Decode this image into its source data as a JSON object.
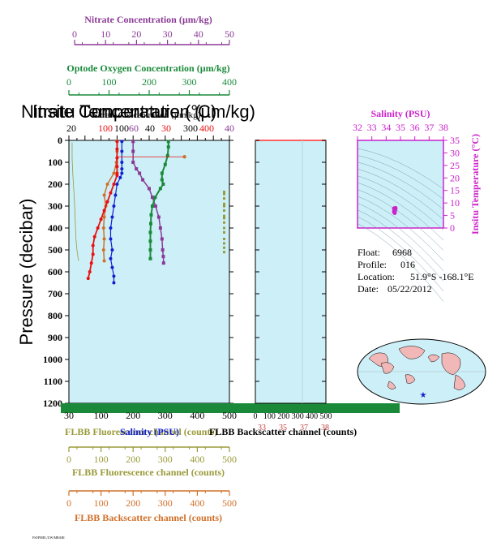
{
  "colors": {
    "nitrate": "#8b3a96",
    "oxygen": "#1a8a3a",
    "temperature": "#e81010",
    "salinity_profile": "#1020d0",
    "fluorescence": "#9a9a3a",
    "backscatter": "#d0702a",
    "insitu": "#cc22cc",
    "panel_bg": "#cdeff8"
  },
  "top_axes": [
    {
      "id": "nitrate",
      "label": "Nitrate Concentration (µm/kg)",
      "ticks": [
        "0",
        "10",
        "20",
        "30",
        "40",
        "50"
      ],
      "color": "#8b3a96"
    },
    {
      "id": "oxygen",
      "label": "Optode Oxygen Concentration (µm/kg)",
      "ticks": [
        "0",
        "100",
        "200",
        "300",
        "400"
      ],
      "color": "#1a8a3a"
    }
  ],
  "bottom_axes": [
    {
      "id": "fluor",
      "label": "FLBB Fluorescence channel (counts)",
      "ticks": [
        "0",
        "100",
        "200",
        "300",
        "400",
        "500"
      ],
      "color": "#9a9a3a"
    },
    {
      "id": "bbp",
      "label": "FLBB Backscatter channel (counts)",
      "ticks": [
        "0",
        "100",
        "200",
        "300",
        "400",
        "500"
      ],
      "color": "#d0702a"
    }
  ],
  "overlap_titles": [
    "Nitrate Concentration (µm/kg)",
    "Insitu Temperature (°C)"
  ],
  "overlap_bottom": [
    "FLBB Fluorescence channel (counts)",
    "Salinity (PSU)",
    "FLBB Backscatter channel (counts)"
  ],
  "main_inner_top_ticks": [
    "20",
    "100",
    "100",
    "60",
    "40",
    "30",
    "300",
    "400",
    "40"
  ],
  "main_inner_bottom_ticks": [
    "30",
    "100",
    "200",
    "300",
    "400",
    "500"
  ],
  "small_panel_ticks": [
    "0",
    "100",
    "200",
    "300",
    "400",
    "500"
  ],
  "small_panel_bottom_overlap": [
    "33",
    "35",
    "37",
    "38"
  ],
  "pressure_axis": {
    "label": "Pressure (decibar)",
    "ticks": [
      "0",
      "100",
      "200",
      "300",
      "400",
      "500",
      "600",
      "700",
      "800",
      "900",
      "1000",
      "1100",
      "1200"
    ]
  },
  "ts_diagram": {
    "x_label": "Salinity (PSU)",
    "x_ticks": [
      "32",
      "33",
      "34",
      "35",
      "36",
      "37",
      "38"
    ],
    "y_label": "Insitu Temperature (°C)",
    "y_ticks": [
      "0",
      "5",
      "10",
      "15",
      "20",
      "25",
      "30",
      "35"
    ]
  },
  "float_info": [
    {
      "key": "Float:",
      "value": "6968"
    },
    {
      "key": "Profile:",
      "value": "016"
    },
    {
      "key": "Location:",
      "value": "51.9°S  -168.1°E"
    },
    {
      "key": "Date:",
      "value": "05/22/2012"
    }
  ],
  "footer_stamp": "FSI/PMEL/UW/MBARI",
  "chart_data": {
    "type": "line",
    "title": "",
    "ylabel": "Pressure (decibar)",
    "ylim": [
      1200,
      0
    ],
    "series": [
      {
        "name": "Nitrate Concentration (µm/kg)",
        "xlim": [
          0,
          50
        ],
        "x": [
          20,
          20,
          20,
          21,
          22,
          23,
          25,
          26,
          27,
          28,
          28.5,
          29,
          29.2,
          29.4,
          29.5
        ],
        "y": [
          5,
          50,
          100,
          130,
          150,
          180,
          220,
          260,
          300,
          350,
          400,
          450,
          500,
          530,
          560
        ]
      },
      {
        "name": "Optode Oxygen Concentration (µm/kg)",
        "xlim": [
          0,
          400
        ],
        "x": [
          248,
          248,
          246,
          240,
          232,
          232,
          235,
          228,
          215,
          208,
          205,
          204,
          203,
          203,
          203,
          203
        ],
        "y": [
          5,
          30,
          70,
          110,
          150,
          180,
          200,
          220,
          260,
          300,
          340,
          380,
          420,
          460,
          500,
          540
        ]
      },
      {
        "name": "Insitu Temperature (°C)",
        "xlim": [
          0,
          50
        ],
        "x": [
          15,
          15,
          15,
          15,
          15,
          15,
          14,
          13,
          12,
          11,
          10,
          9,
          8,
          7.5,
          7.5,
          7,
          6.5,
          6
        ],
        "y": [
          5,
          40,
          80,
          120,
          150,
          160,
          200,
          240,
          280,
          320,
          360,
          400,
          440,
          480,
          520,
          560,
          600,
          630
        ]
      },
      {
        "name": "Salinity (PSU)",
        "xlim": [
          33,
          38
        ],
        "x": [
          34.65,
          34.65,
          34.65,
          34.65,
          34.65,
          34.6,
          34.5,
          34.45,
          34.4,
          34.35,
          34.3,
          34.3,
          34.35,
          34.3,
          34.35,
          34.4,
          34.4
        ],
        "y": [
          5,
          50,
          100,
          130,
          150,
          170,
          200,
          250,
          300,
          350,
          400,
          450,
          500,
          540,
          580,
          620,
          650
        ]
      },
      {
        "name": "FLBB Backscatter channel (counts)",
        "xlim": [
          0,
          500
        ],
        "x": [
          150,
          150,
          148,
          140,
          120,
          110,
          115,
          110,
          108,
          110,
          108,
          110
        ],
        "y": [
          5,
          50,
          100,
          150,
          200,
          250,
          300,
          350,
          400,
          450,
          500,
          550
        ]
      },
      {
        "name": "FLBB Fluorescence channel (counts)",
        "xlim": [
          0,
          500
        ],
        "x": [
          10,
          10,
          12,
          15,
          18,
          20,
          22,
          25,
          30
        ],
        "y": [
          10,
          80,
          150,
          220,
          300,
          380,
          450,
          500,
          550
        ]
      }
    ]
  }
}
